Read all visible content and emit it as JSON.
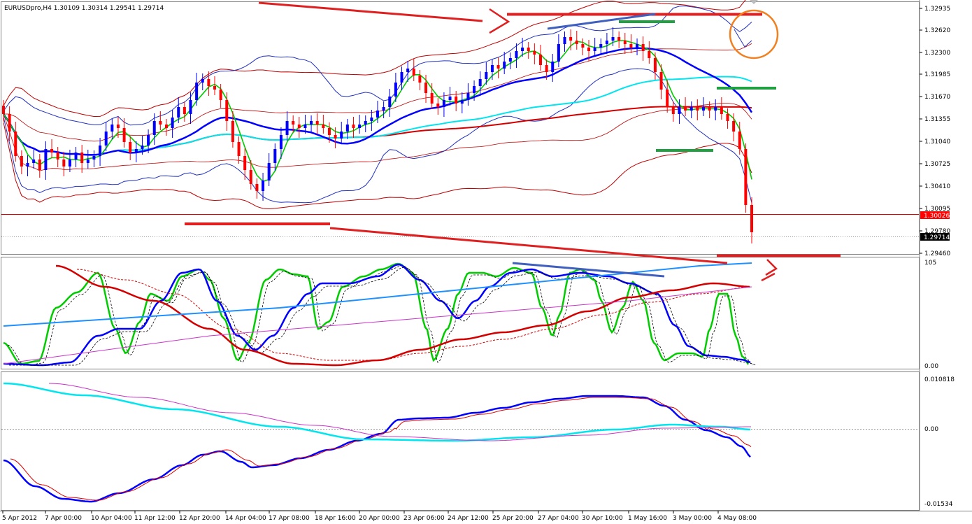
{
  "header": {
    "symbol": "EURUSDpro,H4",
    "ohlc": "1.30109 1.30314 1.29541 1.29714"
  },
  "colors": {
    "bull": "#0000ff",
    "bear": "#ff0000",
    "green": "#00cc00",
    "cyan": "#00e5ee",
    "red_ma": "#d40000",
    "thin_red": "#c00000",
    "magenta": "#cc33cc",
    "sky": "#1e90ff",
    "steel": "#4060c0",
    "annot_red": "#e02020",
    "annot_green": "#20a040",
    "orange": "#f08020",
    "grid": "#aaaaaa"
  },
  "chart_data": [
    {
      "type": "candlestick",
      "panel": "price",
      "ylim": [
        1.294,
        1.33
      ],
      "y_ticks": [
        "1.32935",
        "1.32620",
        "1.32300",
        "1.31985",
        "1.31670",
        "1.31355",
        "1.31040",
        "1.30725",
        "1.30410",
        "1.30095",
        "1.29780",
        "1.29460"
      ],
      "current_price_tag": "1.29714",
      "level_tag": "1.30026",
      "x_ticks": [
        "5 Apr 2012",
        "7 Apr 00:00",
        "10 Apr 04:00",
        "11 Apr 12:00",
        "12 Apr 20:00",
        "14 Apr 04:00",
        "17 Apr 08:00",
        "18 Apr 16:00",
        "20 Apr 00:00",
        "23 Apr 06:00",
        "24 Apr 12:00",
        "25 Apr 20:00",
        "27 Apr 04:00",
        "30 Apr 10:00",
        "1 May 16:00",
        "3 May 00:00",
        "4 May 08:00"
      ],
      "close": [
        1.314,
        1.3115,
        1.308,
        1.3065,
        1.307,
        1.3075,
        1.306,
        1.309,
        1.3085,
        1.3075,
        1.3065,
        1.3075,
        1.3085,
        1.307,
        1.3075,
        1.308,
        1.3095,
        1.3115,
        1.3125,
        1.312,
        1.31,
        1.3085,
        1.309,
        1.3095,
        1.311,
        1.313,
        1.3125,
        1.312,
        1.3135,
        1.315,
        1.314,
        1.316,
        1.3185,
        1.319,
        1.318,
        1.3175,
        1.316,
        1.313,
        1.31,
        1.308,
        1.306,
        1.304,
        1.303,
        1.3045,
        1.307,
        1.309,
        1.311,
        1.313,
        1.3125,
        1.312,
        1.3125,
        1.313,
        1.3125,
        1.312,
        1.311,
        1.3105,
        1.3115,
        1.3125,
        1.312,
        1.3125,
        1.313,
        1.3135,
        1.3145,
        1.315,
        1.3165,
        1.3185,
        1.32,
        1.3205,
        1.3195,
        1.3185,
        1.317,
        1.3155,
        1.315,
        1.316,
        1.3165,
        1.3155,
        1.316,
        1.317,
        1.318,
        1.319,
        1.32,
        1.321,
        1.3205,
        1.3215,
        1.322,
        1.323,
        1.3235,
        1.323,
        1.3225,
        1.321,
        1.32,
        1.3215,
        1.324,
        1.325,
        1.3245,
        1.324,
        1.3235,
        1.323,
        1.3235,
        1.324,
        1.3245,
        1.325,
        1.3245,
        1.324,
        1.3235,
        1.324,
        1.323,
        1.322,
        1.32,
        1.3175,
        1.315,
        1.314,
        1.315,
        1.3145,
        1.315,
        1.3145,
        1.315,
        1.3145,
        1.315,
        1.314,
        1.313,
        1.3115,
        1.309,
        1.301,
        1.2971
      ]
    },
    {
      "type": "line",
      "panel": "stochastic",
      "y_ticks": [
        "105",
        "0.00"
      ],
      "ylim": [
        0,
        105
      ]
    },
    {
      "type": "line",
      "panel": "oscillator",
      "y_ticks": [
        "0.010818",
        "0.00",
        "-0.01534"
      ],
      "ylim": [
        -0.01534,
        0.010818
      ]
    }
  ]
}
